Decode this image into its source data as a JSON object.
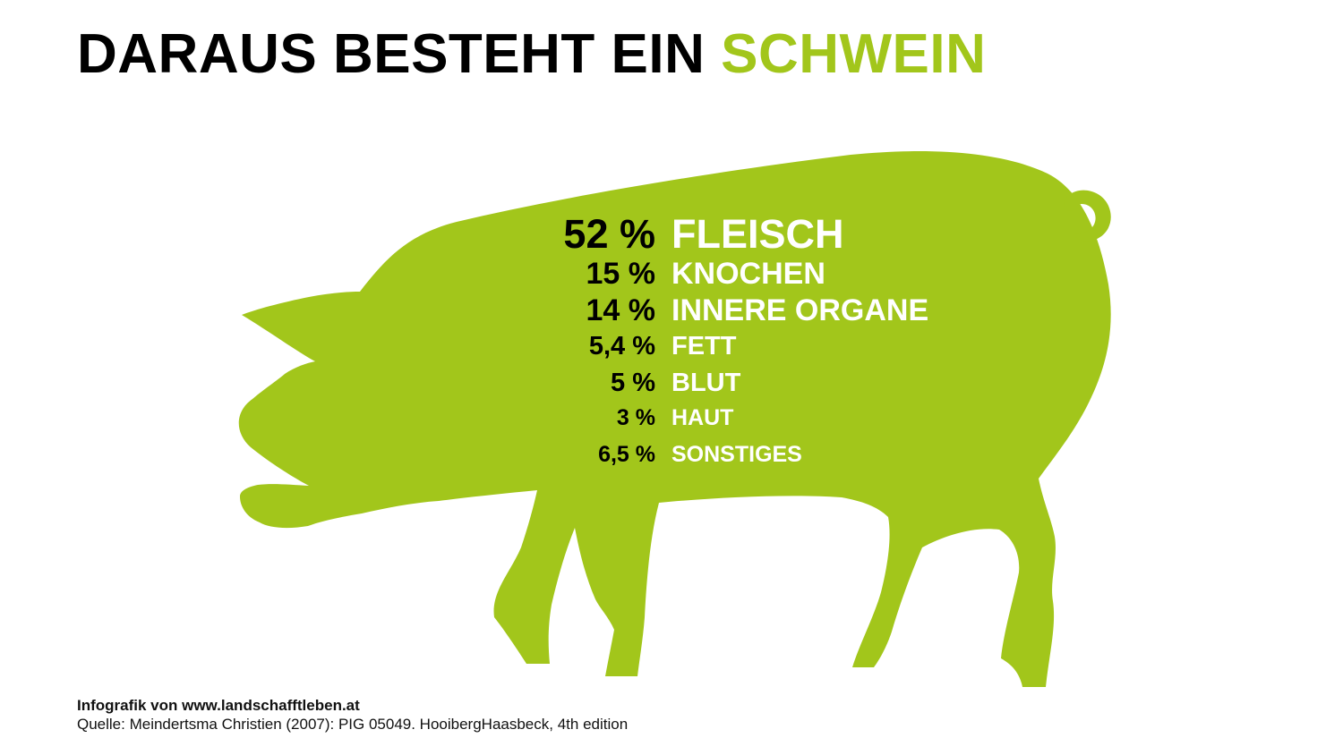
{
  "title": {
    "main": "DARAUS BESTEHT EIN",
    "accent": "SCHWEIN"
  },
  "colors": {
    "accent": "#a2c61b",
    "text": "#000000",
    "label": "#ffffff"
  },
  "stats": [
    {
      "value": "52 %",
      "label": "FLEISCH"
    },
    {
      "value": "15 %",
      "label": "KNOCHEN"
    },
    {
      "value": "14 %",
      "label": "INNERE ORGANE"
    },
    {
      "value": "5,4 %",
      "label": "FETT"
    },
    {
      "value": "5 %",
      "label": "BLUT"
    },
    {
      "value": "3 %",
      "label": "HAUT"
    },
    {
      "value": "6,5 %",
      "label": "SONSTIGES"
    }
  ],
  "footer": {
    "credit": "Infografik von www.landschafftleben.at",
    "source": "Quelle: Meindertsma Christien (2007): PIG 05049. HooibergHaasbeck, 4th edition"
  }
}
